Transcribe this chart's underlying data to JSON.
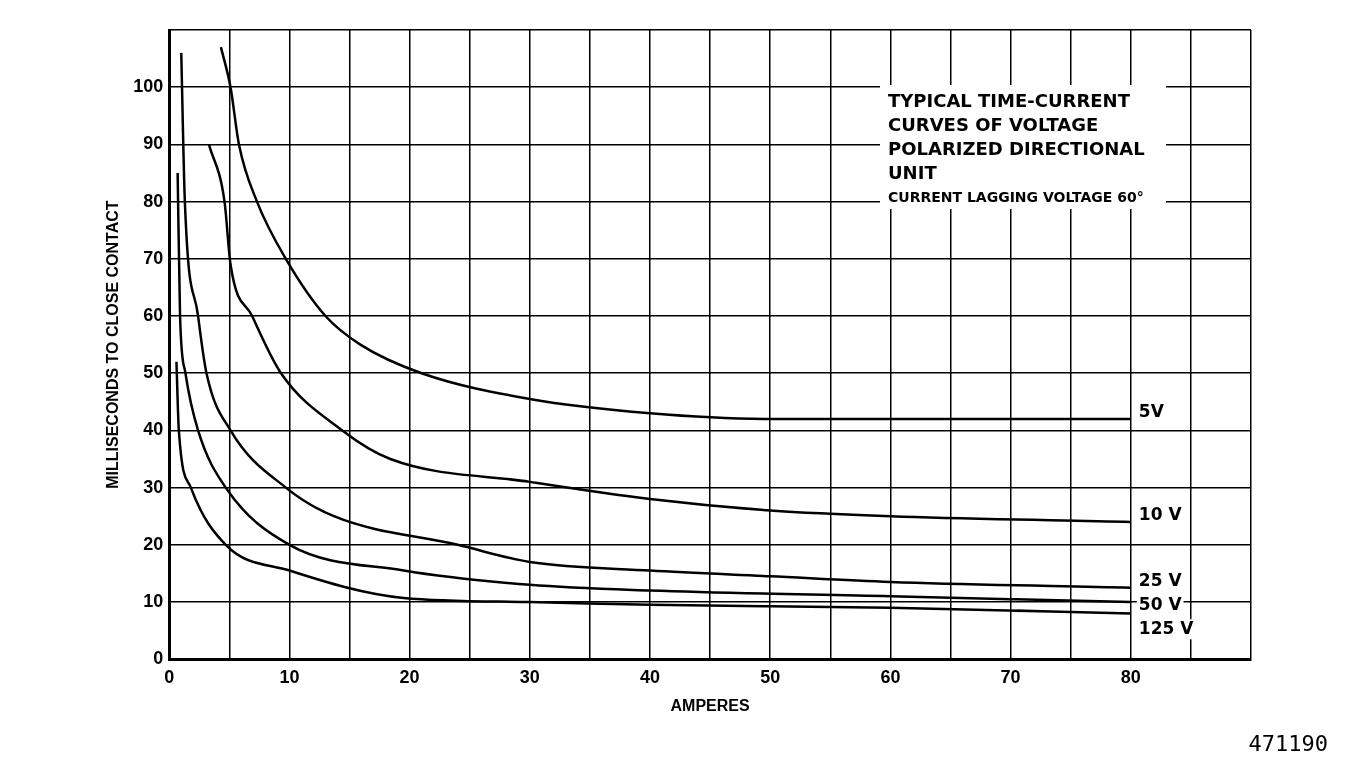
{
  "chart_data": {
    "type": "line",
    "title": "TYPICAL TIME-CURRENT CURVES OF VOLTAGE POLARIZED DIRECTIONAL UNIT",
    "subtitle": "CURRENT LAGGING VOLTAGE 60°",
    "xlabel": "AMPERES",
    "ylabel": "MILLISECONDS TO CLOSE CONTACT",
    "annotations": [
      "471190"
    ],
    "xlim": [
      0,
      90
    ],
    "ylim": [
      0,
      110
    ],
    "xticks": [
      0,
      {
        "value": 5,
        "label": null
      },
      10,
      {
        "value": 15,
        "label": null
      },
      20,
      {
        "value": 25,
        "label": null
      },
      30,
      {
        "value": 35,
        "label": null
      },
      40,
      {
        "value": 45,
        "label": null
      },
      50,
      {
        "value": 55,
        "label": null
      },
      60,
      {
        "value": 65,
        "label": null
      },
      70,
      {
        "value": 75,
        "label": null
      },
      80,
      {
        "value": 85,
        "label": null
      },
      {
        "value": 90,
        "label": null
      }
    ],
    "yticks": [
      0,
      10,
      20,
      30,
      40,
      50,
      60,
      70,
      80,
      90,
      100,
      {
        "value": 110,
        "label": null
      }
    ],
    "grid": true,
    "legend": "right",
    "marker": "none",
    "line_style": "solid",
    "series": [
      {
        "name": "5V",
        "color": "#000000",
        "x": [
          4.3,
          5.1,
          5.8,
          7.3,
          9.7,
          13,
          15.9,
          21,
          30,
          40,
          50,
          60,
          80
        ],
        "values": [
          107,
          100,
          90,
          80,
          70,
          60,
          55,
          50,
          45.5,
          43,
          42,
          42,
          42
        ]
      },
      {
        "name": "10 V",
        "color": "#000000",
        "x": [
          3.3,
          4.6,
          5.1,
          6.9,
          9.3,
          14.4,
          18.4,
          30,
          40,
          50,
          60,
          80
        ],
        "values": [
          90,
          80,
          69,
          60,
          50,
          40,
          35,
          31,
          28,
          26,
          25,
          24
        ]
      },
      {
        "name": "25 V",
        "color": "#000000",
        "x": [
          1,
          1.3,
          2.4,
          3.1,
          5.1,
          9.7,
          13.7,
          24,
          30,
          40,
          50,
          60,
          80
        ],
        "values": [
          106,
          80,
          60,
          50,
          40,
          30,
          25,
          20,
          17,
          15.5,
          14.5,
          13.5,
          12.5
        ]
      },
      {
        "name": "50 V",
        "color": "#000000",
        "x": [
          0.7,
          0.9,
          1.35,
          2.4,
          4.7,
          10,
          19.5,
          30,
          40,
          60,
          80
        ],
        "values": [
          85,
          60,
          50,
          40,
          30,
          20,
          15.5,
          13,
          12,
          11,
          10
        ]
      },
      {
        "name": "125 V",
        "color": "#000000",
        "x": [
          0.6,
          0.8,
          1.8,
          4.7,
          10,
          19.5,
          30,
          40,
          60,
          80
        ],
        "values": [
          52,
          40,
          30,
          20,
          15.5,
          10.7,
          10,
          9.5,
          9,
          8
        ]
      }
    ]
  }
}
